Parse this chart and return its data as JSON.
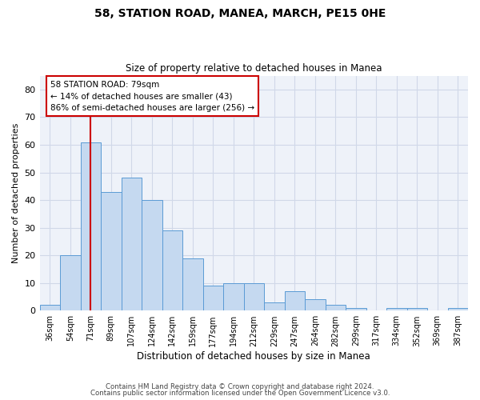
{
  "title1": "58, STATION ROAD, MANEA, MARCH, PE15 0HE",
  "title2": "Size of property relative to detached houses in Manea",
  "xlabel": "Distribution of detached houses by size in Manea",
  "ylabel": "Number of detached properties",
  "categories": [
    "36sqm",
    "54sqm",
    "71sqm",
    "89sqm",
    "107sqm",
    "124sqm",
    "142sqm",
    "159sqm",
    "177sqm",
    "194sqm",
    "212sqm",
    "229sqm",
    "247sqm",
    "264sqm",
    "282sqm",
    "299sqm",
    "317sqm",
    "334sqm",
    "352sqm",
    "369sqm",
    "387sqm"
  ],
  "values": [
    2,
    20,
    61,
    43,
    48,
    40,
    29,
    19,
    9,
    10,
    10,
    3,
    7,
    4,
    2,
    1,
    0,
    1,
    1,
    0,
    1
  ],
  "bar_color": "#c5d9f0",
  "bar_edge_color": "#5b9bd5",
  "ylim": [
    0,
    85
  ],
  "yticks": [
    0,
    10,
    20,
    30,
    40,
    50,
    60,
    70,
    80
  ],
  "grid_color": "#d0d8e8",
  "annotation_line1": "58 STATION ROAD: 79sqm",
  "annotation_line2": "← 14% of detached houses are smaller (43)",
  "annotation_line3": "86% of semi-detached houses are larger (256) →",
  "vline_x_idx": 2,
  "vline_color": "#cc0000",
  "footer1": "Contains HM Land Registry data © Crown copyright and database right 2024.",
  "footer2": "Contains public sector information licensed under the Open Government Licence v3.0.",
  "bg_color": "#eef2f9"
}
